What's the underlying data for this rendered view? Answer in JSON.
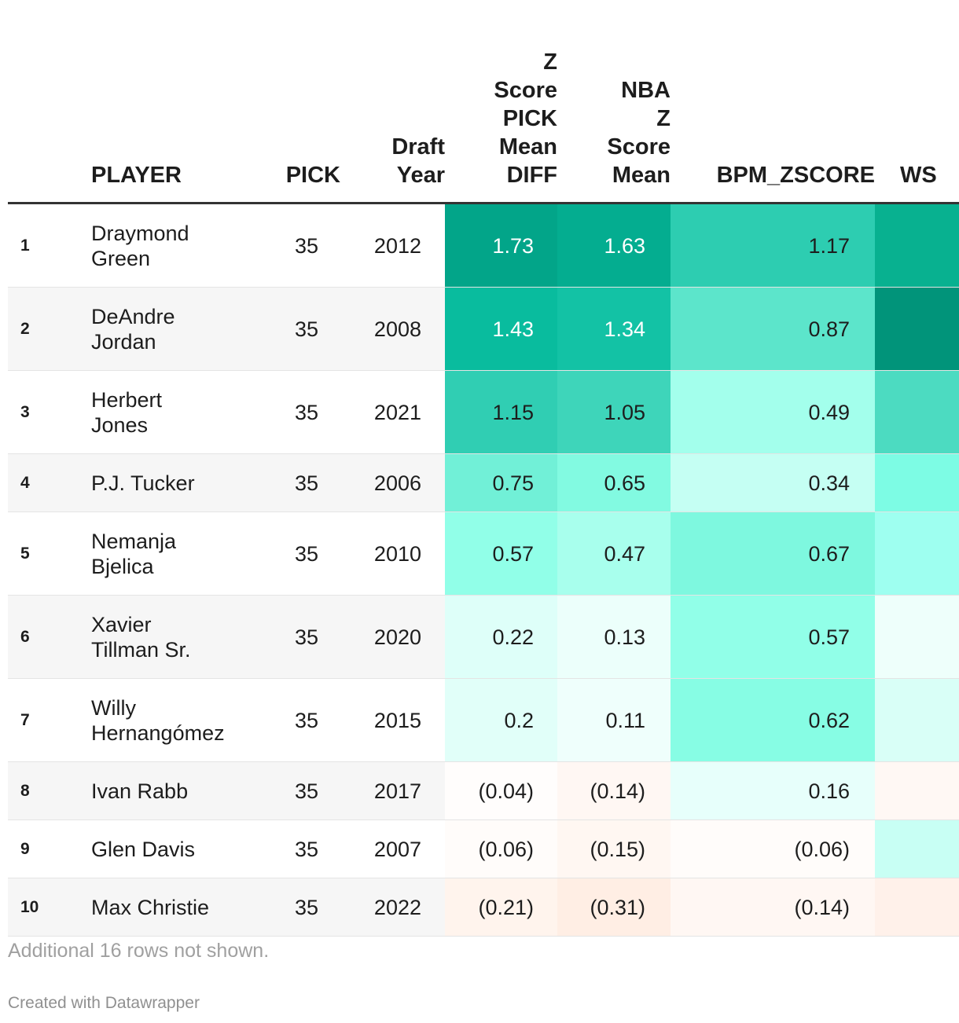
{
  "chart_data": {
    "type": "table",
    "columns": [
      {
        "key": "rank",
        "label": ""
      },
      {
        "key": "player",
        "label": "PLAYER"
      },
      {
        "key": "pick",
        "label": "PICK"
      },
      {
        "key": "year",
        "label": "Draft\nYear"
      },
      {
        "key": "z1",
        "label": "Z\nScore\nPICK\nMean\nDIFF"
      },
      {
        "key": "z2",
        "label": "NBA\nZ\nScore\nMean"
      },
      {
        "key": "bpm",
        "label": "BPM_ZSCORE"
      },
      {
        "key": "ws",
        "label": "WS"
      }
    ],
    "rows": [
      {
        "rank": "1",
        "player": [
          "Draymond",
          "Green"
        ],
        "pick": "35",
        "year": "2012",
        "z1": 1.73,
        "z2": 1.63,
        "bpm": 1.17,
        "z1_label": "1.73",
        "z2_label": "1.63",
        "bpm_label": "1.17",
        "ws_color": "#08b190"
      },
      {
        "rank": "2",
        "player": [
          "DeAndre",
          "Jordan"
        ],
        "pick": "35",
        "year": "2008",
        "z1": 1.43,
        "z2": 1.34,
        "bpm": 0.87,
        "z1_label": "1.43",
        "z2_label": "1.34",
        "bpm_label": "0.87",
        "ws_color": "#01947a"
      },
      {
        "rank": "3",
        "player": [
          "Herbert",
          "Jones"
        ],
        "pick": "35",
        "year": "2021",
        "z1": 1.15,
        "z2": 1.05,
        "bpm": 0.49,
        "z1_label": "1.15",
        "z2_label": "1.05",
        "bpm_label": "0.49",
        "ws_color": "#4cdbc1"
      },
      {
        "rank": "4",
        "player": [
          "P.J. Tucker"
        ],
        "pick": "35",
        "year": "2006",
        "z1": 0.75,
        "z2": 0.65,
        "bpm": 0.34,
        "z1_label": "0.75",
        "z2_label": "0.65",
        "bpm_label": "0.34",
        "ws_color": "#7dfce4"
      },
      {
        "rank": "5",
        "player": [
          "Nemanja",
          "Bjelica"
        ],
        "pick": "35",
        "year": "2010",
        "z1": 0.57,
        "z2": 0.47,
        "bpm": 0.67,
        "z1_label": "0.57",
        "z2_label": "0.47",
        "bpm_label": "0.67",
        "ws_color": "#9efff0"
      },
      {
        "rank": "6",
        "player": [
          "Xavier",
          "Tillman Sr."
        ],
        "pick": "35",
        "year": "2020",
        "z1": 0.22,
        "z2": 0.13,
        "bpm": 0.57,
        "z1_label": "0.22",
        "z2_label": "0.13",
        "bpm_label": "0.57",
        "ws_color": "#eefffb"
      },
      {
        "rank": "7",
        "player": [
          "Willy",
          "Hernangómez"
        ],
        "pick": "35",
        "year": "2015",
        "z1": 0.2,
        "z2": 0.11,
        "bpm": 0.62,
        "z1_label": "0.2",
        "z2_label": "0.11",
        "bpm_label": "0.62",
        "ws_color": "#d9fff7"
      },
      {
        "rank": "8",
        "player": [
          "Ivan Rabb"
        ],
        "pick": "35",
        "year": "2017",
        "z1": -0.04,
        "z2": -0.14,
        "bpm": 0.16,
        "z1_label": "(0.04)",
        "z2_label": "(0.14)",
        "bpm_label": "0.16",
        "ws_color": "#fff8f4"
      },
      {
        "rank": "9",
        "player": [
          "Glen Davis"
        ],
        "pick": "35",
        "year": "2007",
        "z1": -0.06,
        "z2": -0.15,
        "bpm": -0.06,
        "z1_label": "(0.06)",
        "z2_label": "(0.15)",
        "bpm_label": "(0.06)",
        "ws_color": "#c8fff4"
      },
      {
        "rank": "10",
        "player": [
          "Max Christie"
        ],
        "pick": "35",
        "year": "2022",
        "z1": -0.21,
        "z2": -0.31,
        "bpm": -0.14,
        "z1_label": "(0.21)",
        "z2_label": "(0.31)",
        "bpm_label": "(0.14)",
        "ws_color": "#fff1ea"
      }
    ]
  },
  "notes": "Additional 16 rows not shown.",
  "credit": "Created with Datawrapper"
}
